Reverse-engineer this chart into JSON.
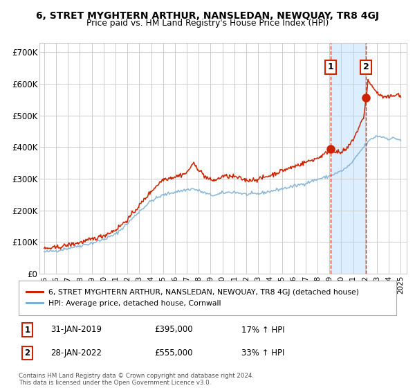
{
  "title": "6, STRET MYGHTERN ARTHUR, NANSLEDAN, NEWQUAY, TR8 4GJ",
  "subtitle": "Price paid vs. HM Land Registry's House Price Index (HPI)",
  "background_color": "#ffffff",
  "plot_bg_color": "#ffffff",
  "grid_color": "#cccccc",
  "hpi_color": "#7bafd4",
  "price_color": "#cc2200",
  "highlight_bg": "#ddeeff",
  "purchase1_x": 2019.08,
  "purchase1_y": 395000,
  "purchase2_x": 2022.08,
  "purchase2_y": 555000,
  "ylim": [
    0,
    730000
  ],
  "xlim_start": 1994.6,
  "xlim_end": 2025.5,
  "yticks": [
    0,
    100000,
    200000,
    300000,
    400000,
    500000,
    600000,
    700000
  ],
  "ytick_labels": [
    "£0",
    "£100K",
    "£200K",
    "£300K",
    "£400K",
    "£500K",
    "£600K",
    "£700K"
  ],
  "xtick_years": [
    1995,
    1996,
    1997,
    1998,
    1999,
    2000,
    2001,
    2002,
    2003,
    2004,
    2005,
    2006,
    2007,
    2008,
    2009,
    2010,
    2011,
    2012,
    2013,
    2014,
    2015,
    2016,
    2017,
    2018,
    2019,
    2020,
    2021,
    2022,
    2023,
    2024,
    2025
  ],
  "legend_house_label": "6, STRET MYGHTERN ARTHUR, NANSLEDAN, NEWQUAY, TR8 4GJ (detached house)",
  "legend_hpi_label": "HPI: Average price, detached house, Cornwall",
  "ann1_date": "31-JAN-2019",
  "ann1_price": "£395,000",
  "ann1_hpi": "17% ↑ HPI",
  "ann2_date": "28-JAN-2022",
  "ann2_price": "£555,000",
  "ann2_hpi": "33% ↑ HPI",
  "footer": "Contains HM Land Registry data © Crown copyright and database right 2024.\nThis data is licensed under the Open Government Licence v3.0."
}
